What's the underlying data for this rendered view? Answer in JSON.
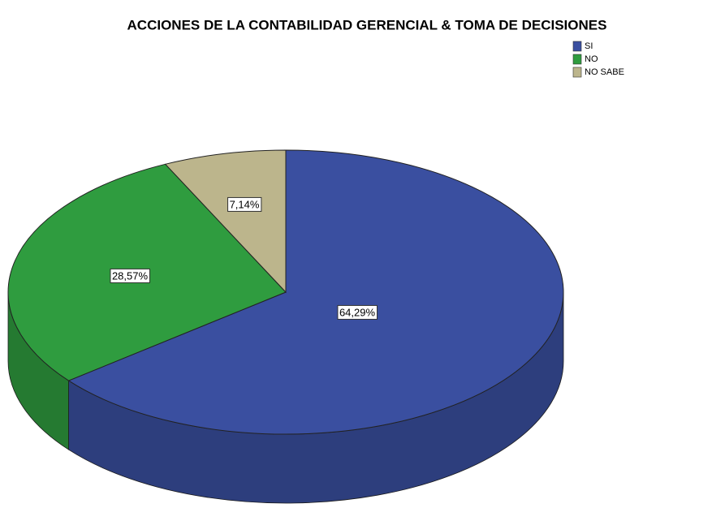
{
  "chart_data": {
    "type": "pie",
    "title": "ACCIONES DE LA CONTABILIDAD GERENCIAL & TOMA DE DECISIONES",
    "categories": [
      "SI",
      "NO",
      "NO SABE"
    ],
    "values": [
      64.29,
      28.57,
      7.14
    ],
    "value_labels": [
      "64,29%",
      "28,57%",
      "7,14%"
    ],
    "colors": [
      "#3a4fa0",
      "#2f9c3f",
      "#bcb58c"
    ],
    "legend": "top-right"
  }
}
